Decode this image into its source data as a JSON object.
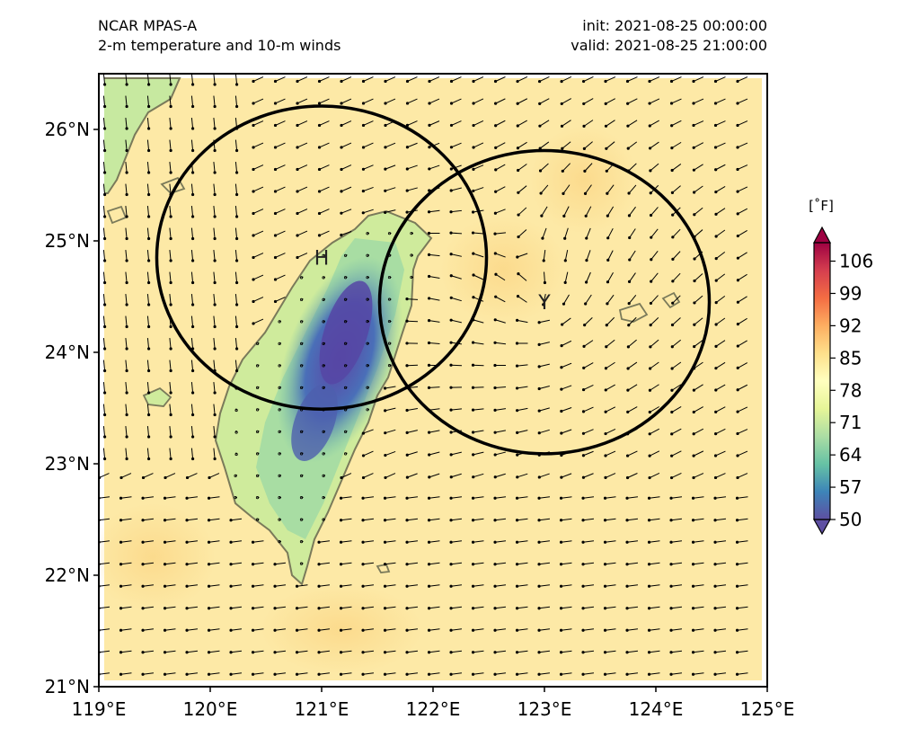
{
  "header": {
    "left_line1": "NCAR MPAS-A",
    "left_line2": "2-m temperature and 10-m winds",
    "right_line1": "init: 2021-08-25 00:00:00",
    "right_line2": "valid: 2021-08-25 21:00:00"
  },
  "map": {
    "lon_range": [
      119,
      125
    ],
    "lat_range": [
      21,
      26.5
    ],
    "x_ticks": [
      119,
      120,
      121,
      122,
      123,
      124,
      125
    ],
    "x_tick_labels": [
      "119°E",
      "120°E",
      "121°E",
      "122°E",
      "123°E",
      "124°E",
      "125°E"
    ],
    "y_ticks": [
      21,
      22,
      23,
      24,
      25,
      26
    ],
    "y_tick_labels": [
      "21°N",
      "22°N",
      "23°N",
      "24°N",
      "25°N",
      "26°N"
    ],
    "markers": [
      {
        "label": "H",
        "lon": 121.0,
        "lat": 24.85,
        "radius_lon": 1.48,
        "radius_lat": 1.36
      },
      {
        "label": "Y",
        "lon": 123.0,
        "lat": 24.45,
        "radius_lon": 1.48,
        "radius_lat": 1.36
      }
    ],
    "field_colors": {
      "ocean": "#fde8a3",
      "land_warm": "#d6ee9b",
      "land_mid": "#8fd1a4",
      "mountain": "#4a63b4",
      "mountain_core": "#5a4aa8"
    }
  },
  "colorbar": {
    "unit": "[˚F]",
    "ticks": [
      50,
      57,
      64,
      71,
      78,
      85,
      92,
      99,
      106
    ],
    "min": 50,
    "max": 110,
    "colors": [
      "#5e4fa2",
      "#3d84b8",
      "#66c2a5",
      "#abdda4",
      "#e6f598",
      "#ffffbf",
      "#fee08b",
      "#fdae61",
      "#f46d43",
      "#d53e4f",
      "#9e0142"
    ]
  }
}
